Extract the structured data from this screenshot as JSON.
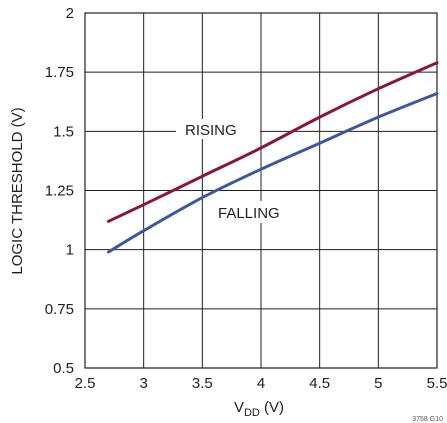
{
  "chart_data": {
    "type": "line",
    "title": "",
    "xlabel": "V",
    "xlabel_sub": "DD",
    "xlabel_unit": " (V)",
    "ylabel": "LOGIC THRESHOLD (V)",
    "xlim": [
      2.5,
      5.5
    ],
    "ylim": [
      0.5,
      2
    ],
    "xticks": [
      2.5,
      3,
      3.5,
      4,
      4.5,
      5,
      5.5
    ],
    "xtick_labels": [
      "2.5",
      "3",
      "3.5",
      "4",
      "4.5",
      "5",
      "5.5"
    ],
    "yticks": [
      0.5,
      0.75,
      1,
      1.25,
      1.5,
      1.75,
      2
    ],
    "ytick_labels": [
      "0.5",
      "0.75",
      "1",
      "1.25",
      "1.5",
      "1.75",
      "2"
    ],
    "grid": true,
    "figure_id": "3758 G10",
    "series": [
      {
        "name": "RISING",
        "color": "#8c1538",
        "x": [
          2.7,
          3.0,
          3.5,
          4.0,
          4.5,
          5.0,
          5.5
        ],
        "y": [
          1.12,
          1.19,
          1.31,
          1.43,
          1.56,
          1.68,
          1.79
        ]
      },
      {
        "name": "FALLING",
        "color": "#3c58a0",
        "x": [
          2.7,
          3.0,
          3.5,
          4.0,
          4.5,
          5.0,
          5.5
        ],
        "y": [
          0.99,
          1.08,
          1.22,
          1.34,
          1.45,
          1.56,
          1.66
        ]
      }
    ]
  }
}
